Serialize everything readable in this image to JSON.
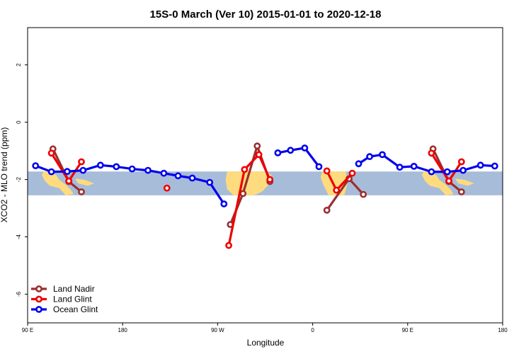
{
  "chart_data": {
    "type": "line",
    "title": "15S-0 March (Ver 10)   2015-01-01 to 2020-12-18",
    "xlabel": "Longitude",
    "ylabel": "XCO2 - MLO trend (ppm)",
    "xlim": [
      0,
      300
    ],
    "ylim": [
      -7,
      3.3
    ],
    "x_ticks": [
      {
        "value": 0,
        "label": "90 E"
      },
      {
        "value": 60,
        "label": "180"
      },
      {
        "value": 120,
        "label": "90 W"
      },
      {
        "value": 180,
        "label": "0"
      },
      {
        "value": 240,
        "label": "90 E"
      },
      {
        "value": 300,
        "label": "180"
      }
    ],
    "y_ticks": [
      {
        "value": -6,
        "label": "-6"
      },
      {
        "value": -4,
        "label": "-4"
      },
      {
        "value": -2,
        "label": "-2"
      },
      {
        "value": 0,
        "label": "0"
      },
      {
        "value": 2,
        "label": "2"
      }
    ],
    "grid": false,
    "legend_position": "bottom-left",
    "background_map_band": {
      "y_top": -1.72,
      "y_bottom": -2.55,
      "ocean_color": "#a7bcd9",
      "land_color": "#fedb7e"
    },
    "series": [
      {
        "name": "Land Nadir",
        "color": "#9b2f2f",
        "segments": [
          [
            [
              16,
              -0.93
            ],
            [
              26,
              -2.07
            ],
            [
              34,
              -2.43
            ]
          ],
          [
            [
              128,
              -3.57
            ],
            [
              136,
              -2.49
            ],
            [
              145,
              -0.83
            ],
            [
              153,
              -2.07
            ]
          ],
          [
            [
              189,
              -3.07
            ],
            [
              203,
              -1.97
            ],
            [
              212,
              -2.52
            ]
          ],
          [
            [
              256,
              -0.93
            ],
            [
              266,
              -2.07
            ],
            [
              274,
              -2.43
            ]
          ]
        ]
      },
      {
        "name": "Land Glint",
        "color": "#ee0000",
        "segments": [
          [
            [
              15,
              -1.08
            ],
            [
              26,
              -2.05
            ],
            [
              34,
              -1.38
            ]
          ],
          [
            [
              88,
              -2.3
            ]
          ],
          [
            [
              127,
              -4.3
            ],
            [
              137,
              -1.65
            ],
            [
              146,
              -1.13
            ],
            [
              153,
              -2.0
            ]
          ],
          [
            [
              189,
              -1.7
            ],
            [
              195,
              -2.37
            ],
            [
              205,
              -1.78
            ]
          ],
          [
            [
              255,
              -1.08
            ],
            [
              266,
              -2.05
            ],
            [
              274,
              -1.38
            ]
          ]
        ]
      },
      {
        "name": "Ocean Glint",
        "color": "#0000ee",
        "segments": [
          [
            [
              5,
              -1.52
            ],
            [
              15,
              -1.73
            ],
            [
              25,
              -1.72
            ],
            [
              35,
              -1.68
            ],
            [
              46,
              -1.5
            ],
            [
              56,
              -1.55
            ],
            [
              66,
              -1.63
            ],
            [
              76,
              -1.68
            ],
            [
              86,
              -1.78
            ],
            [
              95,
              -1.87
            ],
            [
              104,
              -1.95
            ],
            [
              115,
              -2.1
            ],
            [
              124,
              -2.85
            ]
          ],
          [
            [
              158,
              -1.07
            ],
            [
              166,
              -0.98
            ],
            [
              175,
              -0.9
            ],
            [
              184,
              -1.55
            ]
          ],
          [
            [
              209,
              -1.45
            ],
            [
              216,
              -1.2
            ],
            [
              224,
              -1.13
            ],
            [
              235,
              -1.57
            ],
            [
              244,
              -1.54
            ],
            [
              255,
              -1.73
            ],
            [
              265,
              -1.73
            ],
            [
              275,
              -1.68
            ],
            [
              286,
              -1.5
            ],
            [
              295,
              -1.53
            ]
          ]
        ]
      }
    ]
  }
}
